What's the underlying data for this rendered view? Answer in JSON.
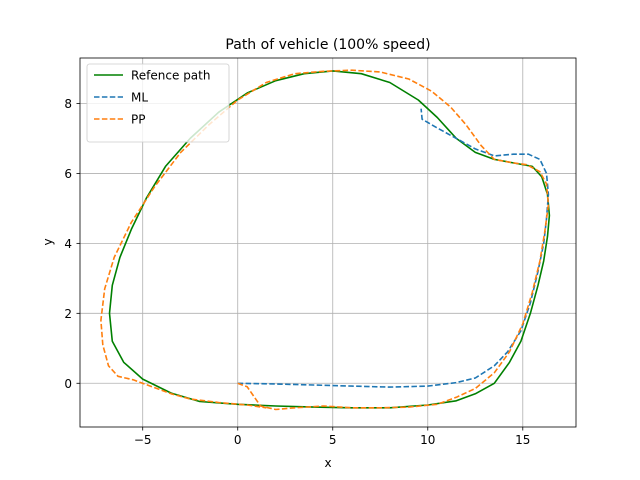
{
  "chart_data": {
    "type": "line",
    "title": "Path of vehicle (100% speed)",
    "xlabel": "x",
    "ylabel": "y",
    "xlim": [
      -8.3,
      17.8
    ],
    "ylim": [
      -1.25,
      9.3
    ],
    "xticks": [
      -5,
      0,
      5,
      10,
      15
    ],
    "xtick_labels": [
      "−5",
      "0",
      "5",
      "10",
      "15"
    ],
    "yticks": [
      0,
      2,
      4,
      6,
      8
    ],
    "ytick_labels": [
      "0",
      "2",
      "4",
      "6",
      "8"
    ],
    "grid": true,
    "legend_position": "upper-left",
    "series": [
      {
        "name": "Refence path",
        "color": "#008000",
        "dash": "solid",
        "points": [
          [
            5.0,
            8.93
          ],
          [
            6.5,
            8.85
          ],
          [
            8.0,
            8.6
          ],
          [
            9.5,
            8.1
          ],
          [
            10.5,
            7.6
          ],
          [
            11.5,
            7.0
          ],
          [
            12.5,
            6.6
          ],
          [
            13.5,
            6.4
          ],
          [
            14.5,
            6.3
          ],
          [
            15.5,
            6.2
          ],
          [
            16.0,
            5.9
          ],
          [
            16.3,
            5.4
          ],
          [
            16.4,
            4.8
          ],
          [
            16.3,
            4.2
          ],
          [
            16.1,
            3.5
          ],
          [
            15.8,
            2.8
          ],
          [
            15.4,
            2.0
          ],
          [
            14.9,
            1.2
          ],
          [
            14.3,
            0.6
          ],
          [
            13.5,
            0.0
          ],
          [
            12.5,
            -0.3
          ],
          [
            11.5,
            -0.5
          ],
          [
            10.0,
            -0.62
          ],
          [
            8.0,
            -0.7
          ],
          [
            6.0,
            -0.7
          ],
          [
            4.0,
            -0.68
          ],
          [
            2.0,
            -0.65
          ],
          [
            0.0,
            -0.6
          ],
          [
            -2.0,
            -0.52
          ],
          [
            -3.5,
            -0.28
          ],
          [
            -5.0,
            0.12
          ],
          [
            -6.0,
            0.6
          ],
          [
            -6.6,
            1.2
          ],
          [
            -6.75,
            2.0
          ],
          [
            -6.6,
            2.8
          ],
          [
            -6.2,
            3.6
          ],
          [
            -5.6,
            4.4
          ],
          [
            -4.8,
            5.3
          ],
          [
            -3.8,
            6.2
          ],
          [
            -2.5,
            7.0
          ],
          [
            -1.0,
            7.75
          ],
          [
            0.5,
            8.3
          ],
          [
            2.0,
            8.65
          ],
          [
            3.5,
            8.85
          ],
          [
            5.0,
            8.93
          ]
        ]
      },
      {
        "name": "ML",
        "color": "#1f77b4",
        "dash": "5.5,2.4",
        "points": [
          [
            0.0,
            0.0
          ],
          [
            2.0,
            -0.02
          ],
          [
            4.0,
            -0.05
          ],
          [
            6.0,
            -0.08
          ],
          [
            8.0,
            -0.11
          ],
          [
            10.0,
            -0.08
          ],
          [
            11.5,
            0.02
          ],
          [
            12.5,
            0.15
          ],
          [
            13.5,
            0.5
          ],
          [
            14.2,
            0.9
          ],
          [
            14.9,
            1.5
          ],
          [
            15.4,
            2.3
          ],
          [
            15.8,
            3.2
          ],
          [
            16.1,
            4.0
          ],
          [
            16.25,
            4.7
          ],
          [
            16.35,
            5.4
          ],
          [
            16.25,
            6.0
          ],
          [
            15.9,
            6.4
          ],
          [
            15.3,
            6.55
          ],
          [
            14.5,
            6.55
          ],
          [
            13.5,
            6.5
          ],
          [
            12.5,
            6.7
          ],
          [
            11.5,
            7.0
          ],
          [
            10.5,
            7.3
          ],
          [
            9.7,
            7.55
          ],
          [
            9.65,
            7.85
          ]
        ]
      },
      {
        "name": "PP",
        "color": "#ff7f0e",
        "dash": "5.5,2.4",
        "points": [
          [
            0.0,
            0.0
          ],
          [
            0.5,
            -0.1
          ],
          [
            1.2,
            -0.65
          ],
          [
            2.0,
            -0.75
          ],
          [
            3.0,
            -0.7
          ],
          [
            4.5,
            -0.65
          ],
          [
            6.0,
            -0.7
          ],
          [
            7.5,
            -0.7
          ],
          [
            9.0,
            -0.68
          ],
          [
            10.5,
            -0.6
          ],
          [
            11.5,
            -0.4
          ],
          [
            12.5,
            -0.15
          ],
          [
            13.5,
            0.3
          ],
          [
            14.3,
            0.9
          ],
          [
            15.0,
            1.7
          ],
          [
            15.5,
            2.6
          ],
          [
            15.9,
            3.5
          ],
          [
            16.15,
            4.3
          ],
          [
            16.35,
            5.1
          ],
          [
            16.25,
            5.7
          ],
          [
            15.9,
            6.05
          ],
          [
            15.2,
            6.25
          ],
          [
            14.5,
            6.3
          ],
          [
            13.5,
            6.4
          ],
          [
            12.8,
            6.8
          ],
          [
            12.0,
            7.4
          ],
          [
            11.2,
            7.9
          ],
          [
            10.2,
            8.35
          ],
          [
            9.0,
            8.7
          ],
          [
            7.5,
            8.9
          ],
          [
            6.0,
            8.95
          ],
          [
            4.5,
            8.92
          ],
          [
            3.0,
            8.85
          ],
          [
            1.5,
            8.6
          ],
          [
            0.0,
            8.1
          ],
          [
            -1.5,
            7.4
          ],
          [
            -3.0,
            6.6
          ],
          [
            -4.4,
            5.6
          ],
          [
            -5.6,
            4.6
          ],
          [
            -6.5,
            3.6
          ],
          [
            -7.0,
            2.7
          ],
          [
            -7.2,
            1.8
          ],
          [
            -7.1,
            1.1
          ],
          [
            -6.8,
            0.5
          ],
          [
            -6.3,
            0.2
          ],
          [
            -5.5,
            0.1
          ],
          [
            -4.5,
            -0.1
          ],
          [
            -3.5,
            -0.3
          ],
          [
            -2.5,
            -0.45
          ],
          [
            -1.0,
            -0.55
          ],
          [
            0.5,
            -0.62
          ],
          [
            1.5,
            -0.7
          ]
        ]
      }
    ]
  }
}
